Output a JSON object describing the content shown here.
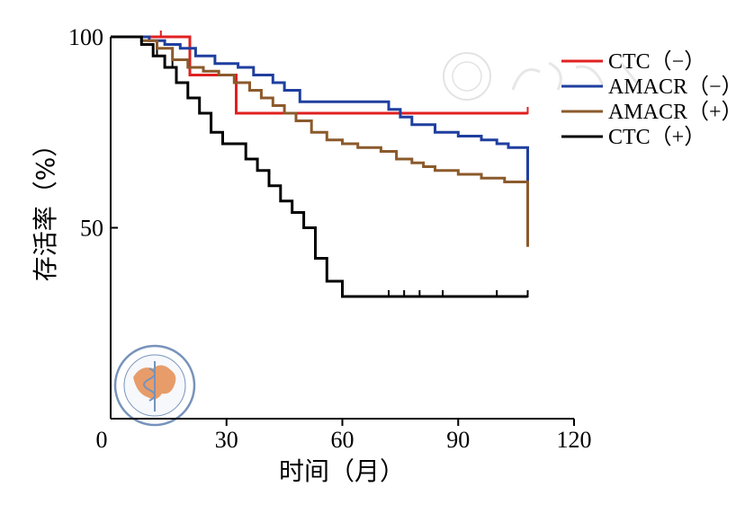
{
  "chart_data": {
    "type": "line",
    "subtype": "kaplan-meier step",
    "xlabel": "时间（月）",
    "ylabel": "存活率（%）",
    "xlim": [
      0,
      120
    ],
    "ylim": [
      0,
      100
    ],
    "x_ticks": [
      0,
      30,
      60,
      90,
      120
    ],
    "y_ticks": [
      50,
      100
    ],
    "x_tick_labels": [
      "0",
      "30",
      "60",
      "90",
      "120"
    ],
    "y_tick_labels": [
      "50",
      "100"
    ],
    "grid": false,
    "legend_position": "top-right",
    "series": [
      {
        "name": "CTC（−）",
        "color": "#e02020",
        "x": [
          0,
          20.5,
          20.5,
          32.5,
          32.5,
          108
        ],
        "y": [
          100,
          100,
          90,
          90,
          80,
          80
        ],
        "censor_x": [
          13,
          108
        ]
      },
      {
        "name": "AMACR（−）",
        "color": "#1f3f9f",
        "x": [
          0,
          10,
          10,
          14,
          14,
          18,
          18,
          22,
          22,
          27,
          27,
          33,
          33,
          37,
          37,
          42,
          42,
          45,
          45,
          49,
          49,
          72,
          72,
          75,
          75,
          78,
          78,
          84,
          84,
          90,
          90,
          96,
          96,
          100,
          100,
          103,
          103,
          108,
          108
        ],
        "y": [
          100,
          100,
          99,
          99,
          98,
          98,
          97,
          97,
          95,
          95,
          93,
          93,
          92,
          92,
          90,
          90,
          88,
          88,
          86,
          86,
          83,
          83,
          81,
          81,
          79,
          79,
          77,
          77,
          75,
          75,
          74,
          74,
          73,
          73,
          72,
          72,
          71,
          71,
          62
        ]
      },
      {
        "name": "AMACR（+）",
        "color": "#8b5a2b",
        "x": [
          0,
          8,
          8,
          12,
          12,
          16,
          16,
          20,
          20,
          24,
          24,
          28,
          28,
          32,
          32,
          36,
          36,
          39,
          39,
          42,
          42,
          45,
          45,
          48,
          48,
          52,
          52,
          56,
          56,
          60,
          60,
          64,
          64,
          70,
          70,
          74,
          74,
          78,
          78,
          81,
          81,
          84,
          84,
          90,
          90,
          96,
          96,
          102,
          102,
          108,
          108
        ],
        "y": [
          100,
          100,
          99,
          99,
          97,
          97,
          94,
          94,
          92,
          92,
          91,
          91,
          90,
          90,
          88,
          88,
          86,
          86,
          84,
          84,
          82,
          82,
          80,
          80,
          78,
          78,
          75,
          75,
          73,
          73,
          72,
          72,
          71,
          71,
          70,
          70,
          68,
          68,
          67,
          67,
          66,
          66,
          65,
          65,
          64,
          64,
          63,
          63,
          62,
          62,
          45
        ]
      },
      {
        "name": "CTC（+）",
        "color": "#000000",
        "x": [
          0,
          8,
          8,
          11,
          11,
          14,
          14,
          17,
          17,
          20,
          20,
          23,
          23,
          26,
          26,
          29,
          29,
          35,
          35,
          38,
          38,
          41,
          41,
          44,
          44,
          47,
          47,
          50,
          50,
          53,
          53,
          56,
          56,
          60,
          60,
          108
        ],
        "y": [
          100,
          100,
          98,
          98,
          95,
          95,
          92,
          92,
          88,
          88,
          84,
          84,
          80,
          80,
          75,
          75,
          72,
          72,
          68,
          68,
          65,
          65,
          61,
          61,
          57,
          57,
          54,
          54,
          50,
          50,
          42,
          42,
          36,
          36,
          32,
          32
        ],
        "censor_x": [
          12,
          16,
          72,
          76,
          80,
          86,
          100,
          108
        ]
      }
    ]
  }
}
